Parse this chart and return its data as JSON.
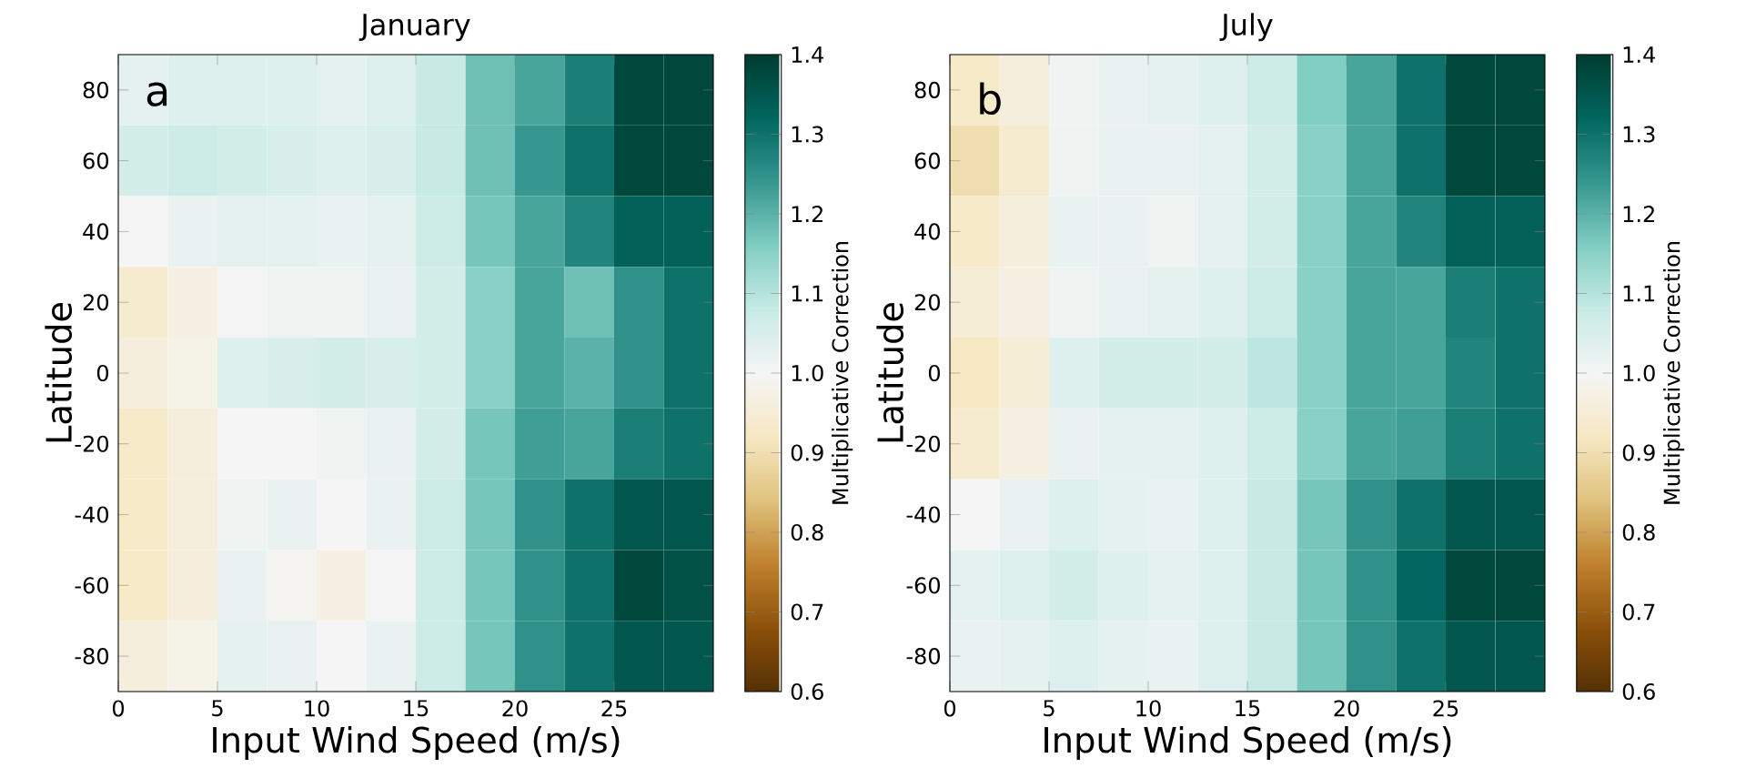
{
  "chart_data": [
    {
      "type": "heatmap",
      "title": "January",
      "xlabel": "Input Wind Speed (m/s)",
      "ylabel": "Latitude",
      "clabel": "Multiplicative Correction",
      "annotations": [
        "a"
      ],
      "xlim": [
        0,
        30
      ],
      "ylim": [
        -90,
        90
      ],
      "xticks": [
        0,
        5,
        10,
        15,
        20,
        25
      ],
      "yticks": [
        -80,
        -60,
        -40,
        -20,
        0,
        20,
        40,
        60,
        80
      ],
      "clim": [
        0.6,
        1.4
      ],
      "cticks": [
        0.6,
        0.7,
        0.8,
        0.9,
        {
          "value": 1.0,
          "label": "1.0"
        },
        1.1,
        1.2,
        1.3,
        1.4
      ],
      "cells": [
        [
          1.03,
          1.04,
          1.04,
          1.04,
          1.03,
          1.04,
          1.08,
          1.18,
          1.22,
          1.28,
          1.38,
          1.38
        ],
        [
          1.06,
          1.07,
          1.06,
          1.05,
          1.04,
          1.05,
          1.08,
          1.18,
          1.24,
          1.3,
          1.38,
          1.38
        ],
        [
          1.0,
          1.02,
          1.03,
          1.03,
          1.02,
          1.03,
          1.07,
          1.17,
          1.22,
          1.27,
          1.33,
          1.33
        ],
        [
          0.94,
          0.97,
          1.0,
          1.01,
          1.01,
          1.02,
          1.06,
          1.15,
          1.22,
          1.18,
          1.25,
          1.3
        ],
        [
          0.96,
          0.98,
          1.04,
          1.05,
          1.06,
          1.05,
          1.06,
          1.15,
          1.22,
          1.2,
          1.25,
          1.3
        ],
        [
          0.93,
          0.96,
          1.0,
          1.0,
          1.01,
          1.02,
          1.06,
          1.17,
          1.23,
          1.22,
          1.28,
          1.3
        ],
        [
          0.93,
          0.96,
          1.01,
          1.02,
          1.0,
          1.02,
          1.07,
          1.17,
          1.25,
          1.3,
          1.35,
          1.35
        ],
        [
          0.93,
          0.96,
          1.02,
          0.99,
          0.97,
          1.0,
          1.07,
          1.17,
          1.25,
          1.3,
          1.38,
          1.36
        ],
        [
          0.96,
          0.98,
          1.03,
          1.02,
          1.0,
          1.02,
          1.07,
          1.17,
          1.25,
          1.3,
          1.35,
          1.35
        ]
      ]
    },
    {
      "type": "heatmap",
      "title": "July",
      "xlabel": "Input Wind Speed (m/s)",
      "ylabel": "Latitude",
      "clabel": "Multiplicative Correction",
      "annotations": [
        "b"
      ],
      "xlim": [
        0,
        30
      ],
      "ylim": [
        -90,
        90
      ],
      "xticks": [
        0,
        5,
        10,
        15,
        20,
        25
      ],
      "yticks": [
        -80,
        -60,
        -40,
        -20,
        0,
        20,
        40,
        60,
        80
      ],
      "clim": [
        0.6,
        1.4
      ],
      "cticks": [
        0.6,
        0.7,
        0.8,
        0.9,
        {
          "value": 1.0,
          "label": "1.0"
        },
        1.1,
        1.2,
        1.3,
        1.4
      ],
      "cells": [
        [
          0.93,
          0.96,
          1.01,
          1.02,
          1.03,
          1.04,
          1.07,
          1.16,
          1.22,
          1.3,
          1.38,
          1.38
        ],
        [
          0.9,
          0.94,
          1.01,
          1.02,
          1.02,
          1.03,
          1.06,
          1.15,
          1.22,
          1.3,
          1.38,
          1.38
        ],
        [
          0.93,
          0.96,
          1.02,
          1.02,
          1.01,
          1.03,
          1.06,
          1.15,
          1.22,
          1.27,
          1.33,
          1.33
        ],
        [
          0.95,
          0.97,
          1.01,
          1.02,
          1.03,
          1.04,
          1.07,
          1.15,
          1.22,
          1.22,
          1.28,
          1.3
        ],
        [
          0.92,
          0.95,
          1.04,
          1.06,
          1.06,
          1.06,
          1.09,
          1.15,
          1.22,
          1.22,
          1.27,
          1.3
        ],
        [
          0.94,
          0.97,
          1.02,
          1.03,
          1.03,
          1.04,
          1.07,
          1.15,
          1.22,
          1.23,
          1.28,
          1.3
        ],
        [
          1.0,
          1.02,
          1.04,
          1.03,
          1.02,
          1.04,
          1.08,
          1.17,
          1.25,
          1.3,
          1.35,
          1.35
        ],
        [
          1.03,
          1.04,
          1.06,
          1.04,
          1.03,
          1.04,
          1.08,
          1.17,
          1.25,
          1.32,
          1.38,
          1.38
        ],
        [
          1.02,
          1.03,
          1.04,
          1.03,
          1.02,
          1.04,
          1.08,
          1.17,
          1.25,
          1.3,
          1.35,
          1.35
        ]
      ]
    }
  ]
}
